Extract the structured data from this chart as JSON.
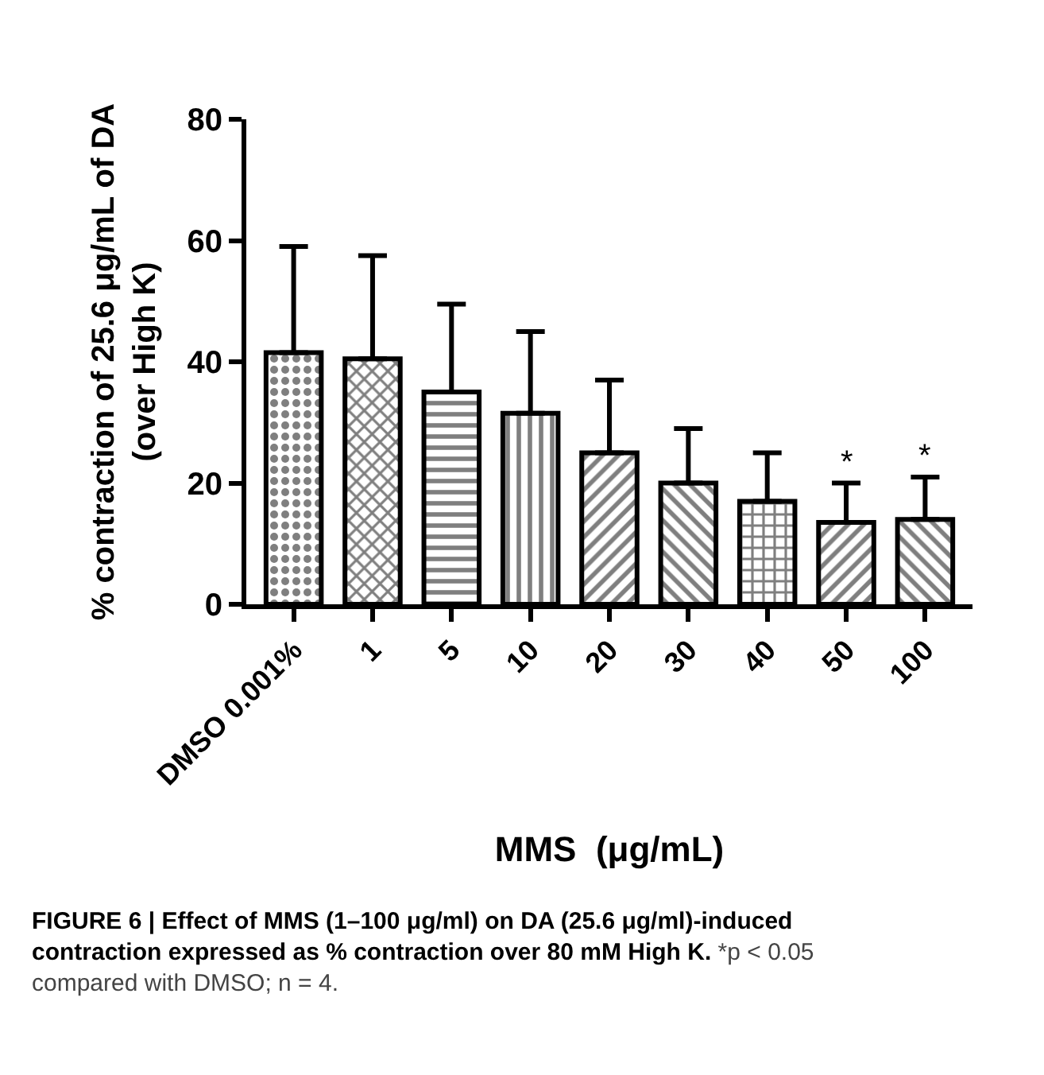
{
  "chart_data": {
    "type": "bar",
    "categories": [
      "DMSO 0.001%",
      "1",
      "5",
      "10",
      "20",
      "30",
      "40",
      "50",
      "100"
    ],
    "values": [
      41.5,
      40.5,
      35,
      31.5,
      25,
      20,
      17,
      13.5,
      14
    ],
    "errors": [
      [
        41.5,
        59
      ],
      [
        40.5,
        57.5
      ],
      [
        35,
        49.5
      ],
      [
        31.5,
        45
      ],
      [
        25,
        37
      ],
      [
        20,
        29
      ],
      [
        17,
        25
      ],
      [
        13.5,
        20
      ],
      [
        14,
        21
      ]
    ],
    "color": "#000000",
    "xlabel": "MMS  (μg/mL)",
    "ylabel": "% contraction of 25.6 μg/mL of DA\n(over High K)",
    "ylim": [
      0,
      80
    ],
    "yticks": [
      0,
      20,
      40,
      60,
      80
    ],
    "annotations": [
      {
        "text": "*",
        "x": "50",
        "y": 20
      },
      {
        "text": "*",
        "x": "100",
        "y": 21
      },
      "FIGURE 6 | Effect of MMS (1–100 μg/ml) on DA (25.6 μg/ml)-induced contraction expressed as % contraction over 80 mM High K.",
      "*p < 0.05 compared with DMSO; n = 4."
    ]
  }
}
